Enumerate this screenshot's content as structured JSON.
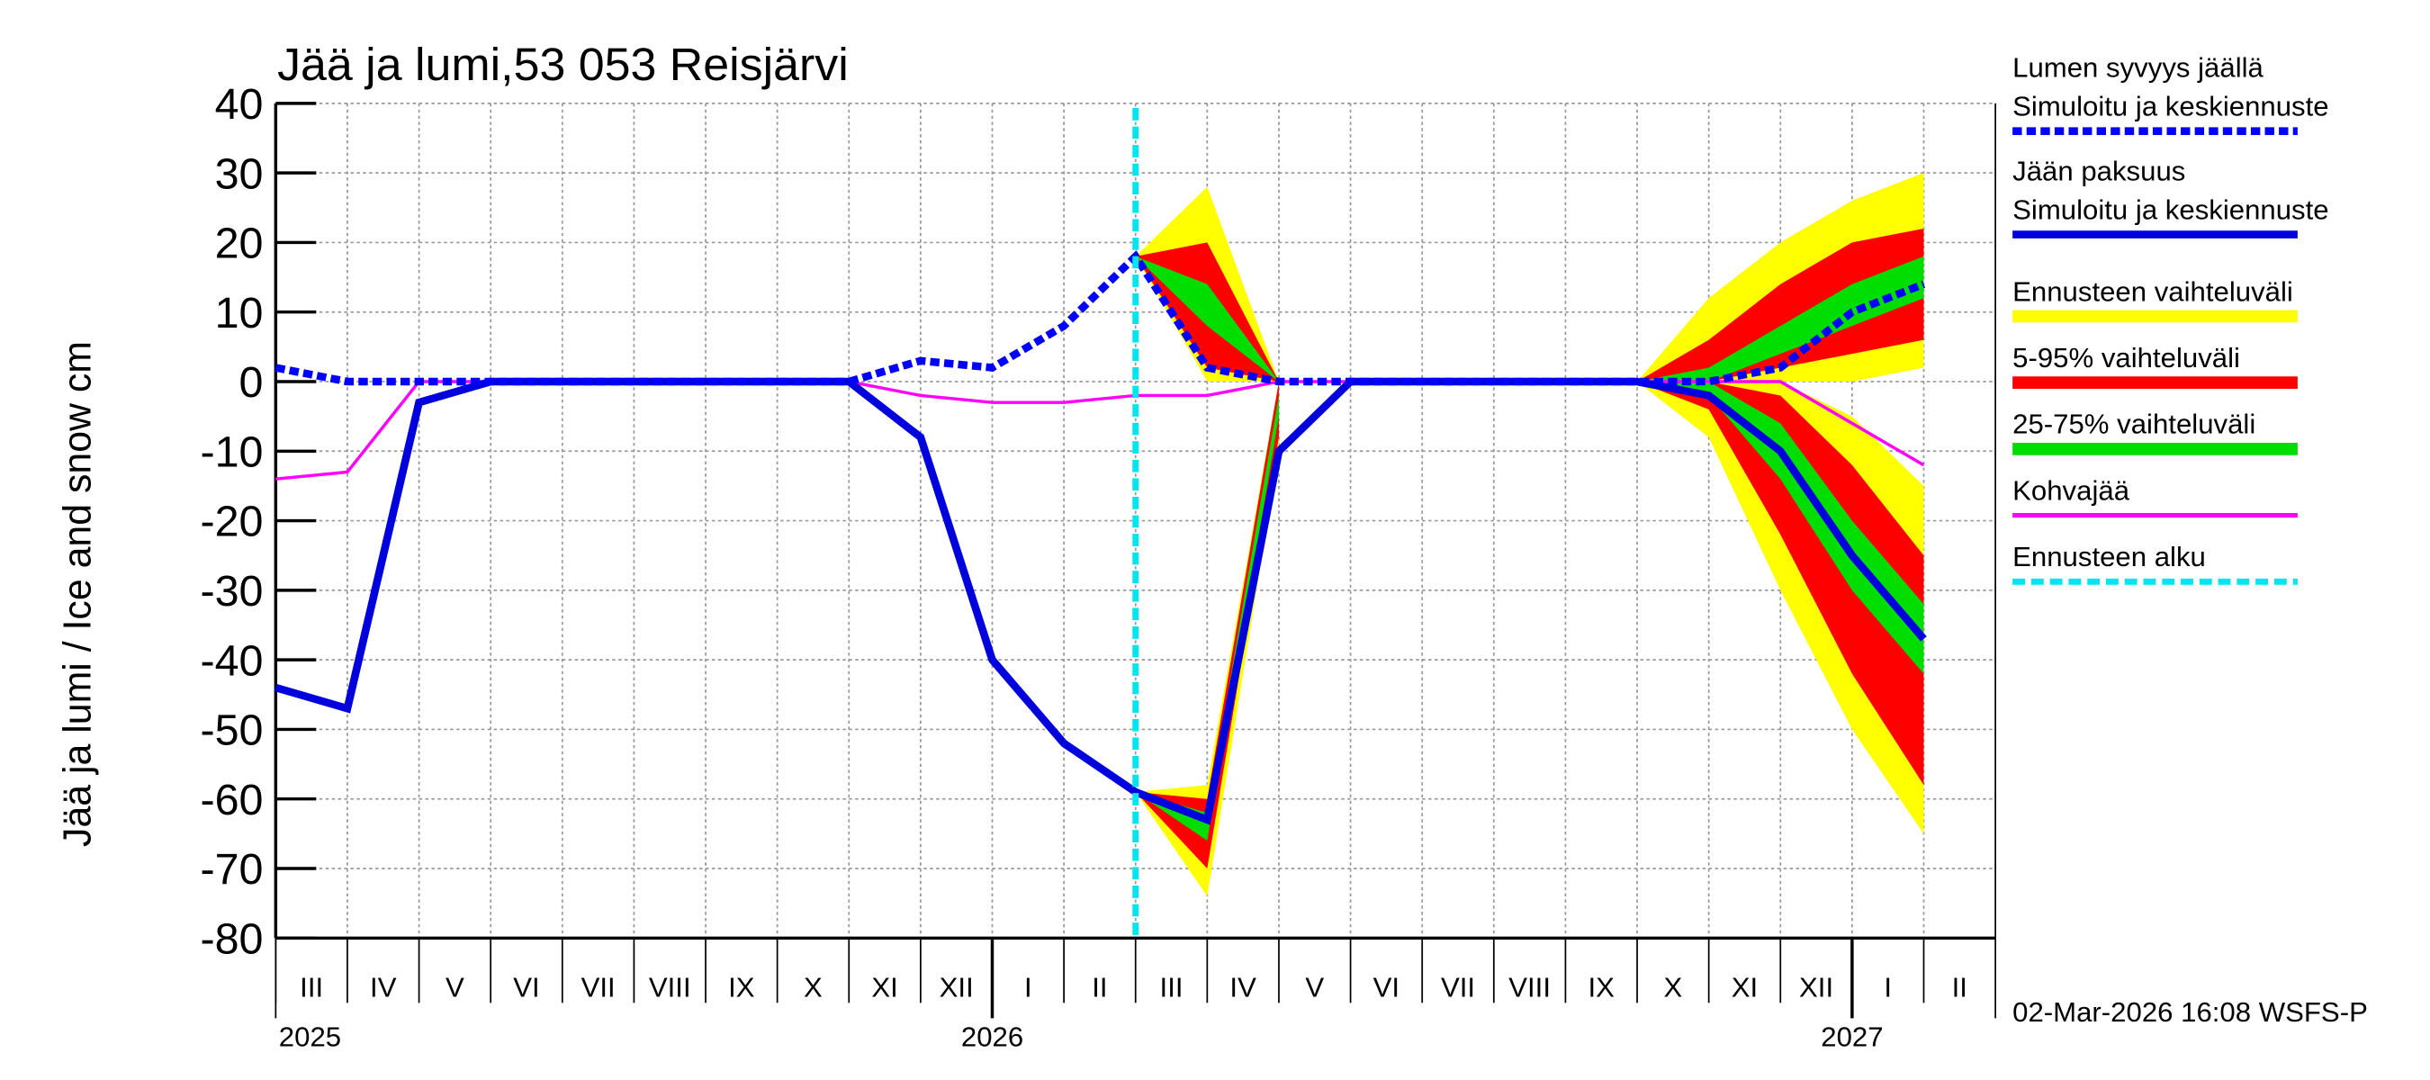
{
  "chart_data": {
    "type": "line",
    "title": "Jää ja lumi,53 053 Reisjärvi",
    "y_label": "Jää ja lumi / Ice and snow    cm",
    "footer": "02-Mar-2026 16:08 WSFS-P",
    "x": [
      "2025-03",
      "2025-04",
      "2025-05",
      "2025-06",
      "2025-07",
      "2025-08",
      "2025-09",
      "2025-10",
      "2025-11",
      "2025-12",
      "2026-01",
      "2026-02",
      "2026-03",
      "2026-04",
      "2026-05",
      "2026-06",
      "2026-07",
      "2026-08",
      "2026-09",
      "2026-10",
      "2026-11",
      "2026-12",
      "2027-01",
      "2027-02"
    ],
    "month_labels": [
      "III",
      "IV",
      "V",
      "VI",
      "VII",
      "VIII",
      "IX",
      "X",
      "XI",
      "XII",
      "I",
      "II",
      "III",
      "IV",
      "V",
      "VI",
      "VII",
      "VIII",
      "IX",
      "X",
      "XI",
      "XII",
      "I",
      "II"
    ],
    "year_labels": [
      "2025",
      "2026",
      "2027"
    ],
    "ylim": [
      -80,
      40
    ],
    "yticks": [
      -80,
      -70,
      -60,
      -50,
      -40,
      -30,
      -20,
      -10,
      0,
      10,
      20,
      30,
      40
    ],
    "grid": true,
    "forecast_start": {
      "label": "Ennusteen alku",
      "x": "2026-03",
      "color": "#00e5ee"
    },
    "bands": [
      {
        "name": "Ennusteen vaihteluväli",
        "color": "#ffff00",
        "snow_low": [
          null,
          null,
          null,
          null,
          null,
          null,
          null,
          null,
          null,
          null,
          null,
          null,
          18,
          0,
          0,
          null,
          null,
          null,
          null,
          0,
          0,
          0,
          0,
          2
        ],
        "snow_high": [
          null,
          null,
          null,
          null,
          null,
          null,
          null,
          null,
          null,
          null,
          null,
          null,
          18,
          28,
          0,
          null,
          null,
          null,
          null,
          0,
          12,
          20,
          26,
          30
        ],
        "ice_low": [
          null,
          null,
          null,
          null,
          null,
          null,
          null,
          null,
          null,
          null,
          null,
          null,
          -59,
          -74,
          -10,
          null,
          null,
          null,
          null,
          0,
          -8,
          -30,
          -50,
          -65
        ],
        "ice_high": [
          null,
          null,
          null,
          null,
          null,
          null,
          null,
          null,
          null,
          null,
          null,
          null,
          -59,
          -58,
          0,
          null,
          null,
          null,
          null,
          0,
          0,
          0,
          -5,
          -15
        ]
      },
      {
        "name": "5-95% vaihteluväli",
        "color": "#ff0000",
        "snow_low": [
          null,
          null,
          null,
          null,
          null,
          null,
          null,
          null,
          null,
          null,
          null,
          null,
          18,
          2,
          0,
          null,
          null,
          null,
          null,
          0,
          0,
          2,
          4,
          6
        ],
        "snow_high": [
          null,
          null,
          null,
          null,
          null,
          null,
          null,
          null,
          null,
          null,
          null,
          null,
          18,
          20,
          0,
          null,
          null,
          null,
          null,
          0,
          6,
          14,
          20,
          22
        ],
        "ice_low": [
          null,
          null,
          null,
          null,
          null,
          null,
          null,
          null,
          null,
          null,
          null,
          null,
          -59,
          -70,
          -8,
          null,
          null,
          null,
          null,
          0,
          -4,
          -22,
          -42,
          -58
        ],
        "ice_high": [
          null,
          null,
          null,
          null,
          null,
          null,
          null,
          null,
          null,
          null,
          null,
          null,
          -59,
          -60,
          0,
          null,
          null,
          null,
          null,
          0,
          0,
          -2,
          -12,
          -25
        ]
      },
      {
        "name": "25-75% vaihteluväli",
        "color": "#00dd00",
        "snow_low": [
          null,
          null,
          null,
          null,
          null,
          null,
          null,
          null,
          null,
          null,
          null,
          null,
          18,
          8,
          0,
          null,
          null,
          null,
          null,
          0,
          0,
          4,
          8,
          12
        ],
        "snow_high": [
          null,
          null,
          null,
          null,
          null,
          null,
          null,
          null,
          null,
          null,
          null,
          null,
          18,
          14,
          0,
          null,
          null,
          null,
          null,
          0,
          2,
          8,
          14,
          18
        ],
        "ice_low": [
          null,
          null,
          null,
          null,
          null,
          null,
          null,
          null,
          null,
          null,
          null,
          null,
          -59,
          -66,
          -5,
          null,
          null,
          null,
          null,
          0,
          -2,
          -14,
          -30,
          -42
        ],
        "ice_high": [
          null,
          null,
          null,
          null,
          null,
          null,
          null,
          null,
          null,
          null,
          null,
          null,
          -59,
          -62,
          -2,
          null,
          null,
          null,
          null,
          0,
          0,
          -6,
          -20,
          -32
        ]
      }
    ],
    "series": [
      {
        "name": "Lumen syvyys jäällä",
        "note": "Simuloitu ja keskiennuste",
        "color": "#0000ff",
        "dashed": true,
        "values": [
          2,
          0,
          0,
          0,
          0,
          0,
          0,
          0,
          0,
          3,
          2,
          8,
          18,
          2,
          0,
          0,
          0,
          0,
          0,
          0,
          0,
          2,
          10,
          14
        ]
      },
      {
        "name": "Jään paksuus",
        "note": "Simuloitu ja keskiennuste",
        "color": "#0000dd",
        "dashed": false,
        "values": [
          -44,
          -47,
          -3,
          0,
          0,
          0,
          0,
          0,
          0,
          -8,
          -40,
          -52,
          -59,
          -63,
          -10,
          0,
          0,
          0,
          0,
          0,
          -2,
          -10,
          -25,
          -37
        ]
      },
      {
        "name": "Kohvajää",
        "color": "#ff00ff",
        "dashed": false,
        "values": [
          -14,
          -13,
          0,
          0,
          0,
          0,
          0,
          0,
          0,
          -2,
          -3,
          -3,
          -2,
          -2,
          0,
          0,
          0,
          0,
          0,
          0,
          0,
          0,
          -6,
          -12
        ]
      }
    ]
  }
}
